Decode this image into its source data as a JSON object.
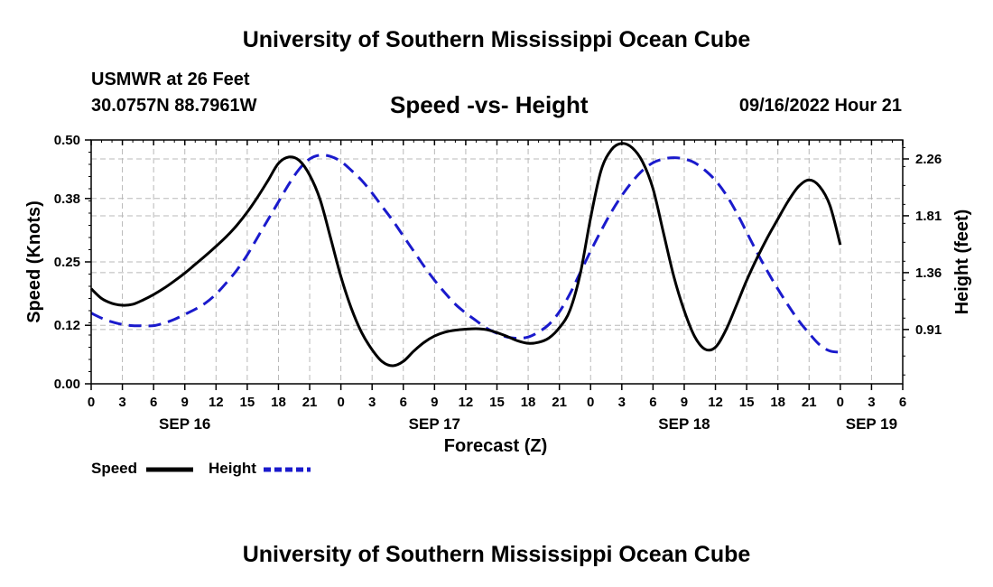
{
  "header": {
    "title": "University of Southern Mississippi Ocean Cube",
    "station": "USMWR at 26 Feet",
    "coordinates": "30.0757N  88.7961W",
    "subtitle": "Speed -vs- Height",
    "datetime": "09/16/2022 Hour 21"
  },
  "footer": {
    "title": "University of Southern Mississippi Ocean Cube"
  },
  "legend": {
    "speed_label": "Speed",
    "height_label": "Height"
  },
  "chart_data": {
    "type": "line",
    "xlabel": "Forecast (Z)",
    "ylabel": "Speed (Knots)",
    "ylabel_right": "Height (feet)",
    "x_unit": "hours from Sep 16 00Z",
    "xlim": [
      0,
      78
    ],
    "ylim": [
      0,
      0.5
    ],
    "ylim_right": [
      0.48,
      2.41
    ],
    "y_ticks": [
      "0.00",
      "0.12",
      "0.25",
      "0.38",
      "0.50"
    ],
    "y_ticks_right": [
      "0.91",
      "1.36",
      "1.81",
      "2.26"
    ],
    "x_tick_labels": [
      "0",
      "3",
      "6",
      "9",
      "12",
      "15",
      "18",
      "21",
      "0",
      "3",
      "6",
      "9",
      "12",
      "15",
      "18",
      "21",
      "0",
      "3",
      "6",
      "9",
      "12",
      "15",
      "18",
      "21",
      "0",
      "3",
      "6"
    ],
    "date_labels": [
      {
        "hour": 9,
        "label": "SEP 16"
      },
      {
        "hour": 33,
        "label": "SEP 17"
      },
      {
        "hour": 57,
        "label": "SEP 18"
      },
      {
        "hour": 75,
        "label": "SEP 19"
      }
    ],
    "grid": true,
    "series": [
      {
        "name": "Speed",
        "axis": "left",
        "color": "#000000",
        "style": "solid",
        "points": [
          [
            0,
            0.195
          ],
          [
            1,
            0.175
          ],
          [
            2,
            0.165
          ],
          [
            3,
            0.161
          ],
          [
            4,
            0.163
          ],
          [
            5,
            0.172
          ],
          [
            6,
            0.183
          ],
          [
            7,
            0.196
          ],
          [
            8,
            0.211
          ],
          [
            9,
            0.227
          ],
          [
            10,
            0.245
          ],
          [
            11,
            0.263
          ],
          [
            12,
            0.282
          ],
          [
            13,
            0.302
          ],
          [
            14,
            0.325
          ],
          [
            15,
            0.352
          ],
          [
            16,
            0.383
          ],
          [
            17,
            0.417
          ],
          [
            18,
            0.452
          ],
          [
            19,
            0.465
          ],
          [
            20,
            0.458
          ],
          [
            21,
            0.428
          ],
          [
            22,
            0.378
          ],
          [
            23,
            0.3
          ],
          [
            24,
            0.22
          ],
          [
            25,
            0.155
          ],
          [
            26,
            0.105
          ],
          [
            27,
            0.07
          ],
          [
            28,
            0.045
          ],
          [
            29,
            0.037
          ],
          [
            30,
            0.046
          ],
          [
            31,
            0.067
          ],
          [
            32,
            0.085
          ],
          [
            33,
            0.098
          ],
          [
            34,
            0.106
          ],
          [
            35,
            0.11
          ],
          [
            36,
            0.112
          ],
          [
            37,
            0.113
          ],
          [
            38,
            0.111
          ],
          [
            39,
            0.105
          ],
          [
            40,
            0.097
          ],
          [
            41,
            0.088
          ],
          [
            42,
            0.083
          ],
          [
            43,
            0.085
          ],
          [
            44,
            0.094
          ],
          [
            45,
            0.115
          ],
          [
            46,
            0.15
          ],
          [
            47,
            0.225
          ],
          [
            48,
            0.34
          ],
          [
            49,
            0.437
          ],
          [
            50,
            0.48
          ],
          [
            51,
            0.493
          ],
          [
            52,
            0.484
          ],
          [
            53,
            0.455
          ],
          [
            54,
            0.4
          ],
          [
            55,
            0.31
          ],
          [
            56,
            0.22
          ],
          [
            57,
            0.15
          ],
          [
            58,
            0.097
          ],
          [
            59,
            0.071
          ],
          [
            60,
            0.075
          ],
          [
            61,
            0.11
          ],
          [
            62,
            0.16
          ],
          [
            63,
            0.212
          ],
          [
            64,
            0.258
          ],
          [
            65,
            0.3
          ],
          [
            66,
            0.338
          ],
          [
            67,
            0.375
          ],
          [
            68,
            0.405
          ],
          [
            69,
            0.418
          ],
          [
            70,
            0.405
          ],
          [
            71,
            0.366
          ],
          [
            72,
            0.285
          ]
        ]
      },
      {
        "name": "Height",
        "axis": "right",
        "color": "#1a1acc",
        "style": "dashed",
        "points": [
          [
            0,
            1.04
          ],
          [
            1,
            1.0
          ],
          [
            2,
            0.97
          ],
          [
            3,
            0.95
          ],
          [
            4,
            0.94
          ],
          [
            5,
            0.94
          ],
          [
            6,
            0.94
          ],
          [
            7,
            0.96
          ],
          [
            8,
            0.99
          ],
          [
            9,
            1.03
          ],
          [
            10,
            1.07
          ],
          [
            11,
            1.12
          ],
          [
            12,
            1.19
          ],
          [
            13,
            1.28
          ],
          [
            14,
            1.38
          ],
          [
            15,
            1.5
          ],
          [
            16,
            1.64
          ],
          [
            17,
            1.78
          ],
          [
            18,
            1.92
          ],
          [
            19,
            2.06
          ],
          [
            20,
            2.18
          ],
          [
            21,
            2.26
          ],
          [
            22,
            2.29
          ],
          [
            23,
            2.28
          ],
          [
            24,
            2.24
          ],
          [
            25,
            2.17
          ],
          [
            26,
            2.09
          ],
          [
            27,
            1.99
          ],
          [
            28,
            1.88
          ],
          [
            29,
            1.77
          ],
          [
            30,
            1.65
          ],
          [
            31,
            1.53
          ],
          [
            32,
            1.41
          ],
          [
            33,
            1.3
          ],
          [
            34,
            1.2
          ],
          [
            35,
            1.11
          ],
          [
            36,
            1.04
          ],
          [
            37,
            0.98
          ],
          [
            38,
            0.92
          ],
          [
            39,
            0.88
          ],
          [
            40,
            0.85
          ],
          [
            41,
            0.84
          ],
          [
            42,
            0.85
          ],
          [
            43,
            0.89
          ],
          [
            44,
            0.95
          ],
          [
            45,
            1.05
          ],
          [
            46,
            1.19
          ],
          [
            47,
            1.36
          ],
          [
            48,
            1.53
          ],
          [
            49,
            1.69
          ],
          [
            50,
            1.84
          ],
          [
            51,
            1.97
          ],
          [
            52,
            2.08
          ],
          [
            53,
            2.17
          ],
          [
            54,
            2.23
          ],
          [
            55,
            2.26
          ],
          [
            56,
            2.27
          ],
          [
            57,
            2.26
          ],
          [
            58,
            2.23
          ],
          [
            59,
            2.17
          ],
          [
            60,
            2.09
          ],
          [
            61,
            1.98
          ],
          [
            62,
            1.84
          ],
          [
            63,
            1.68
          ],
          [
            64,
            1.52
          ],
          [
            65,
            1.37
          ],
          [
            66,
            1.23
          ],
          [
            67,
            1.1
          ],
          [
            68,
            0.98
          ],
          [
            69,
            0.88
          ],
          [
            70,
            0.79
          ],
          [
            71,
            0.74
          ],
          [
            72,
            0.73
          ]
        ]
      }
    ]
  }
}
